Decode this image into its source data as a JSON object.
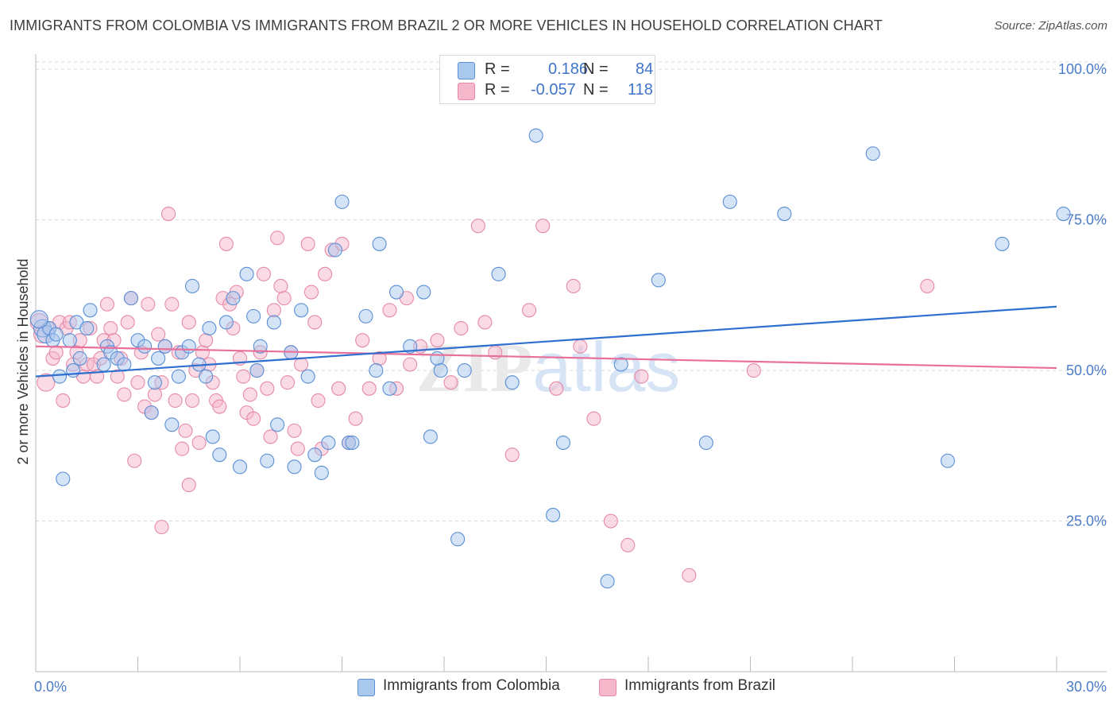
{
  "header": {
    "title": "IMMIGRANTS FROM COLOMBIA VS IMMIGRANTS FROM BRAZIL 2 OR MORE VEHICLES IN HOUSEHOLD CORRELATION CHART",
    "source": "Source: ZipAtlas.com"
  },
  "legend": {
    "colombia": {
      "r_label": "R =",
      "r_value": "0.186",
      "n_label": "N =",
      "n_value": "84"
    },
    "brazil": {
      "r_label": "R =",
      "r_value": "-0.057",
      "n_label": "N =",
      "n_value": "118"
    }
  },
  "bottom_legend": {
    "colombia": "Immigrants from Colombia",
    "brazil": "Immigrants from Brazil"
  },
  "colors": {
    "blue_fill": "#a9c8ee",
    "blue_stroke": "#5b8fd6",
    "blue_line": "#2f6fd0",
    "pink_fill": "#f5b8cb",
    "pink_stroke": "#e58aa8",
    "pink_line": "#e8709a",
    "grid": "#d9d9d9",
    "axis_text": "#4a7cc9"
  },
  "chart_data": {
    "type": "scatter",
    "title": "IMMIGRANTS FROM COLOMBIA VS IMMIGRANTS FROM BRAZIL 2 OR MORE VEHICLES IN HOUSEHOLD CORRELATION CHART",
    "xlabel": "",
    "ylabel": "2 or more Vehicles in Household",
    "xlim": [
      0,
      30
    ],
    "ylim": [
      0,
      102
    ],
    "x_tick_labels": [
      "0.0%",
      "30.0%"
    ],
    "y_ticks": [
      25,
      50,
      75,
      100
    ],
    "y_tick_labels": [
      "25.0%",
      "50.0%",
      "75.0%",
      "100.0%"
    ],
    "watermark": "ZIPatlas",
    "series": [
      {
        "name": "Immigrants from Colombia",
        "color": "blue",
        "trend": {
          "x": [
            0,
            30
          ],
          "y": [
            49.0,
            60.6
          ]
        },
        "points": [
          [
            0.2,
            57
          ],
          [
            0.3,
            56
          ],
          [
            0.4,
            57
          ],
          [
            0.5,
            55
          ],
          [
            0.6,
            56
          ],
          [
            0.7,
            49
          ],
          [
            0.8,
            32
          ],
          [
            1.0,
            55
          ],
          [
            1.1,
            50
          ],
          [
            1.2,
            58
          ],
          [
            1.3,
            52
          ],
          [
            1.5,
            57
          ],
          [
            1.6,
            60
          ],
          [
            2.0,
            51
          ],
          [
            2.1,
            54
          ],
          [
            2.2,
            53
          ],
          [
            2.4,
            52
          ],
          [
            2.6,
            51
          ],
          [
            2.8,
            62
          ],
          [
            3.0,
            55
          ],
          [
            3.2,
            54
          ],
          [
            3.4,
            43
          ],
          [
            3.5,
            48
          ],
          [
            3.6,
            52
          ],
          [
            3.8,
            54
          ],
          [
            4.0,
            41
          ],
          [
            4.2,
            49
          ],
          [
            4.3,
            53
          ],
          [
            4.5,
            54
          ],
          [
            4.6,
            64
          ],
          [
            4.8,
            51
          ],
          [
            5.0,
            49
          ],
          [
            5.1,
            57
          ],
          [
            5.2,
            39
          ],
          [
            5.4,
            36
          ],
          [
            5.6,
            58
          ],
          [
            5.8,
            62
          ],
          [
            6.0,
            34
          ],
          [
            6.2,
            66
          ],
          [
            6.4,
            59
          ],
          [
            6.5,
            50
          ],
          [
            6.6,
            54
          ],
          [
            6.8,
            35
          ],
          [
            7.0,
            58
          ],
          [
            7.1,
            41
          ],
          [
            7.5,
            53
          ],
          [
            7.6,
            34
          ],
          [
            7.8,
            60
          ],
          [
            8.0,
            49
          ],
          [
            8.2,
            36
          ],
          [
            8.4,
            33
          ],
          [
            8.6,
            38
          ],
          [
            8.8,
            70
          ],
          [
            9.0,
            78
          ],
          [
            9.2,
            38
          ],
          [
            9.3,
            38
          ],
          [
            9.7,
            59
          ],
          [
            10.0,
            50
          ],
          [
            10.1,
            71
          ],
          [
            10.4,
            47
          ],
          [
            10.6,
            63
          ],
          [
            11.0,
            54
          ],
          [
            11.4,
            63
          ],
          [
            11.6,
            39
          ],
          [
            11.8,
            52
          ],
          [
            11.9,
            50
          ],
          [
            12.4,
            22
          ],
          [
            12.6,
            50
          ],
          [
            13.6,
            66
          ],
          [
            14.0,
            48
          ],
          [
            14.7,
            89
          ],
          [
            15.2,
            26
          ],
          [
            15.5,
            38
          ],
          [
            16.8,
            15
          ],
          [
            17.2,
            51
          ],
          [
            18.3,
            65
          ],
          [
            19.7,
            38
          ],
          [
            20.4,
            78
          ],
          [
            22.0,
            76
          ],
          [
            24.6,
            86
          ],
          [
            26.8,
            35
          ],
          [
            28.4,
            71
          ],
          [
            30.2,
            76
          ],
          [
            0.1,
            58.5
          ]
        ]
      },
      {
        "name": "Immigrants from Brazil",
        "color": "pink",
        "trend": {
          "x": [
            0,
            30
          ],
          "y": [
            54.0,
            50.4
          ]
        },
        "points": [
          [
            0.1,
            58
          ],
          [
            0.2,
            56
          ],
          [
            0.3,
            48
          ],
          [
            0.4,
            57
          ],
          [
            0.5,
            52
          ],
          [
            0.6,
            53
          ],
          [
            0.7,
            58
          ],
          [
            0.8,
            45
          ],
          [
            0.9,
            57
          ],
          [
            1.0,
            58
          ],
          [
            1.1,
            51
          ],
          [
            1.2,
            53
          ],
          [
            1.3,
            55
          ],
          [
            1.4,
            49
          ],
          [
            1.5,
            51
          ],
          [
            1.6,
            57
          ],
          [
            1.7,
            51
          ],
          [
            1.8,
            49
          ],
          [
            1.9,
            52
          ],
          [
            2.0,
            55
          ],
          [
            2.1,
            61
          ],
          [
            2.2,
            57
          ],
          [
            2.3,
            55
          ],
          [
            2.4,
            49
          ],
          [
            2.5,
            52
          ],
          [
            2.6,
            46
          ],
          [
            2.7,
            58
          ],
          [
            2.8,
            62
          ],
          [
            2.9,
            35
          ],
          [
            3.0,
            48
          ],
          [
            3.1,
            53
          ],
          [
            3.2,
            44
          ],
          [
            3.3,
            61
          ],
          [
            3.4,
            43
          ],
          [
            3.5,
            46
          ],
          [
            3.6,
            56
          ],
          [
            3.7,
            48
          ],
          [
            3.8,
            54
          ],
          [
            3.9,
            76
          ],
          [
            4.0,
            61
          ],
          [
            4.1,
            45
          ],
          [
            4.2,
            53
          ],
          [
            4.3,
            37
          ],
          [
            4.4,
            40
          ],
          [
            4.5,
            58
          ],
          [
            4.6,
            45
          ],
          [
            4.7,
            50
          ],
          [
            4.8,
            38
          ],
          [
            4.9,
            53
          ],
          [
            5.0,
            55
          ],
          [
            5.1,
            51
          ],
          [
            5.2,
            48
          ],
          [
            5.3,
            45
          ],
          [
            5.4,
            44
          ],
          [
            5.5,
            62
          ],
          [
            5.6,
            71
          ],
          [
            5.7,
            61
          ],
          [
            5.8,
            57
          ],
          [
            5.9,
            63
          ],
          [
            6.0,
            52
          ],
          [
            6.1,
            49
          ],
          [
            6.2,
            43
          ],
          [
            6.3,
            46
          ],
          [
            6.4,
            42
          ],
          [
            6.5,
            50
          ],
          [
            6.6,
            53
          ],
          [
            6.7,
            66
          ],
          [
            6.8,
            47
          ],
          [
            6.9,
            39
          ],
          [
            7.0,
            60
          ],
          [
            7.1,
            72
          ],
          [
            7.2,
            64
          ],
          [
            7.3,
            62
          ],
          [
            7.4,
            48
          ],
          [
            7.5,
            53
          ],
          [
            7.6,
            40
          ],
          [
            7.7,
            37
          ],
          [
            7.8,
            51
          ],
          [
            8.0,
            71
          ],
          [
            8.1,
            63
          ],
          [
            8.2,
            58
          ],
          [
            8.3,
            45
          ],
          [
            8.4,
            37
          ],
          [
            8.5,
            66
          ],
          [
            8.7,
            70
          ],
          [
            8.9,
            47
          ],
          [
            9.0,
            71
          ],
          [
            9.2,
            38
          ],
          [
            9.4,
            42
          ],
          [
            9.6,
            55
          ],
          [
            9.8,
            47
          ],
          [
            10.1,
            52
          ],
          [
            10.4,
            60
          ],
          [
            10.6,
            47
          ],
          [
            10.9,
            62
          ],
          [
            11.0,
            51
          ],
          [
            11.3,
            54
          ],
          [
            11.8,
            55
          ],
          [
            12.2,
            48
          ],
          [
            12.5,
            57
          ],
          [
            13.0,
            74
          ],
          [
            13.2,
            58
          ],
          [
            13.5,
            53
          ],
          [
            14.0,
            36
          ],
          [
            14.5,
            60
          ],
          [
            14.9,
            74
          ],
          [
            15.3,
            47
          ],
          [
            15.8,
            64
          ],
          [
            16.0,
            54
          ],
          [
            16.4,
            42
          ],
          [
            16.9,
            25
          ],
          [
            17.4,
            21
          ],
          [
            17.8,
            49
          ],
          [
            19.2,
            16
          ],
          [
            21.1,
            50
          ],
          [
            26.2,
            64
          ],
          [
            4.5,
            31
          ],
          [
            3.7,
            24
          ]
        ]
      }
    ]
  }
}
